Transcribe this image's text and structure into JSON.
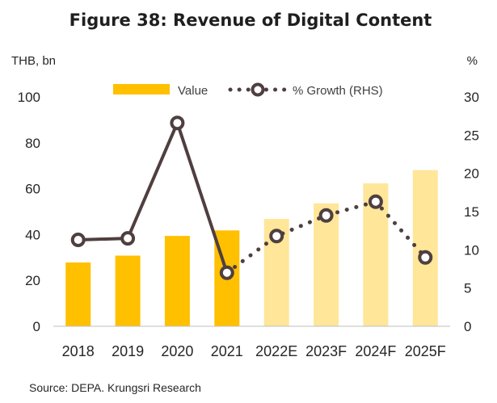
{
  "chart_data": {
    "type": "bar",
    "title": "Figure 38: Revenue of Digital Content",
    "ylabel_left": "THB, bn",
    "ylabel_right": "%",
    "categories": [
      "2018",
      "2019",
      "2020",
      "2021",
      "2022E",
      "2023F",
      "2024F",
      "2025F"
    ],
    "series": [
      {
        "name": "Value",
        "type": "bar",
        "axis": "left",
        "values": [
          27.8,
          30.8,
          39.4,
          41.8,
          46.8,
          53.6,
          62.3,
          68.1
        ],
        "colors": {
          "actual": "#FFC000",
          "forecast": "#FFE699"
        }
      },
      {
        "name": "% Growth (RHS)",
        "type": "line",
        "axis": "right",
        "values": [
          11.3,
          11.5,
          26.6,
          7.0,
          11.8,
          14.5,
          16.3,
          9.0
        ],
        "color": "#4F3F3F"
      }
    ],
    "forecast_start_index": 4,
    "ylim_left": [
      0,
      100
    ],
    "yticks_left": [
      0,
      20,
      40,
      60,
      80,
      100
    ],
    "ylim_right": [
      0,
      30
    ],
    "yticks_right": [
      0,
      5,
      10,
      15,
      20,
      25,
      30
    ],
    "grid": false,
    "legend_position": "top",
    "source": "Source: DEPA. Krungsri Research"
  }
}
